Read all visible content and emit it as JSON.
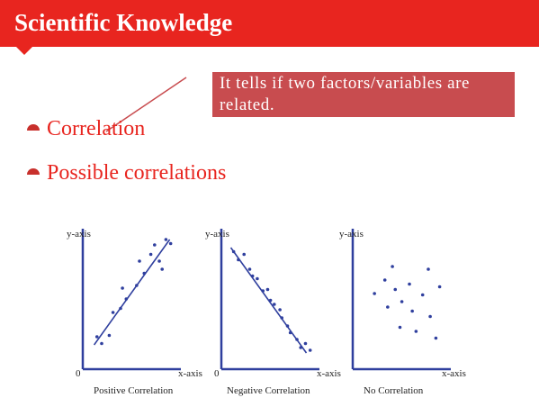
{
  "slide": {
    "title": "Scientific Knowledge",
    "callout": "It tells if two factors/variables are related.",
    "bullets": [
      {
        "label": "Correlation"
      },
      {
        "label": "Possible correlations"
      }
    ],
    "colors": {
      "header": "#e8251f",
      "callout_bg": "#c84c4f",
      "bullet_text": "#e8251f",
      "axis": "#2f3f9e"
    }
  },
  "chart_data": [
    {
      "type": "scatter",
      "title": "Positive Correlation",
      "xlabel": "x-axis",
      "ylabel": "y-axis",
      "origin_label": "0",
      "xlim": [
        0,
        10
      ],
      "ylim": [
        0,
        10
      ],
      "grid": false,
      "trendline": [
        [
          1.2,
          1.8
        ],
        [
          9.2,
          9.6
        ]
      ],
      "points": [
        [
          1.5,
          2.4
        ],
        [
          2.0,
          1.9
        ],
        [
          2.8,
          2.5
        ],
        [
          3.2,
          4.2
        ],
        [
          4.0,
          4.5
        ],
        [
          4.2,
          6.0
        ],
        [
          4.6,
          5.2
        ],
        [
          5.7,
          6.2
        ],
        [
          6.0,
          8.0
        ],
        [
          6.5,
          7.1
        ],
        [
          7.2,
          8.5
        ],
        [
          7.6,
          9.2
        ],
        [
          8.1,
          8.0
        ],
        [
          8.4,
          7.4
        ],
        [
          8.8,
          9.6
        ],
        [
          9.3,
          9.3
        ]
      ]
    },
    {
      "type": "scatter",
      "title": "Negative Correlation",
      "xlabel": "x-axis",
      "ylabel": "y-axis",
      "origin_label": "0",
      "xlim": [
        0,
        10
      ],
      "ylim": [
        0,
        10
      ],
      "grid": false,
      "trendline": [
        [
          1.0,
          9.0
        ],
        [
          9.0,
          1.2
        ]
      ],
      "points": [
        [
          1.3,
          8.7
        ],
        [
          1.8,
          8.1
        ],
        [
          2.4,
          8.5
        ],
        [
          3.0,
          7.4
        ],
        [
          3.3,
          6.9
        ],
        [
          3.8,
          6.7
        ],
        [
          4.4,
          5.8
        ],
        [
          4.9,
          5.9
        ],
        [
          5.2,
          5.1
        ],
        [
          5.6,
          4.8
        ],
        [
          6.2,
          4.4
        ],
        [
          6.4,
          3.8
        ],
        [
          7.0,
          3.2
        ],
        [
          7.3,
          2.7
        ],
        [
          8.0,
          2.2
        ],
        [
          8.4,
          1.6
        ],
        [
          8.9,
          1.9
        ],
        [
          9.4,
          1.4
        ]
      ]
    },
    {
      "type": "scatter",
      "title": "No Correlation",
      "xlabel": "x-axis",
      "ylabel": "y-axis",
      "origin_label": "",
      "xlim": [
        0,
        10
      ],
      "ylim": [
        0,
        10
      ],
      "grid": false,
      "trendline": null,
      "points": [
        [
          2.3,
          5.6
        ],
        [
          3.4,
          6.6
        ],
        [
          3.7,
          4.6
        ],
        [
          4.2,
          7.6
        ],
        [
          4.5,
          5.9
        ],
        [
          5.0,
          3.1
        ],
        [
          5.2,
          5.0
        ],
        [
          6.0,
          6.3
        ],
        [
          6.3,
          4.3
        ],
        [
          6.7,
          2.8
        ],
        [
          7.4,
          5.5
        ],
        [
          8.0,
          7.4
        ],
        [
          8.2,
          3.9
        ],
        [
          8.8,
          2.3
        ],
        [
          9.2,
          6.1
        ]
      ]
    }
  ]
}
